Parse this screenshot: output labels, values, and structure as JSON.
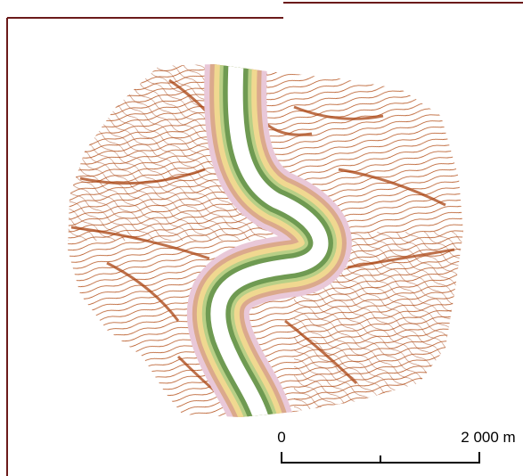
{
  "scale_bar": {
    "labels": [
      "0",
      "2 000 m"
    ]
  }
}
